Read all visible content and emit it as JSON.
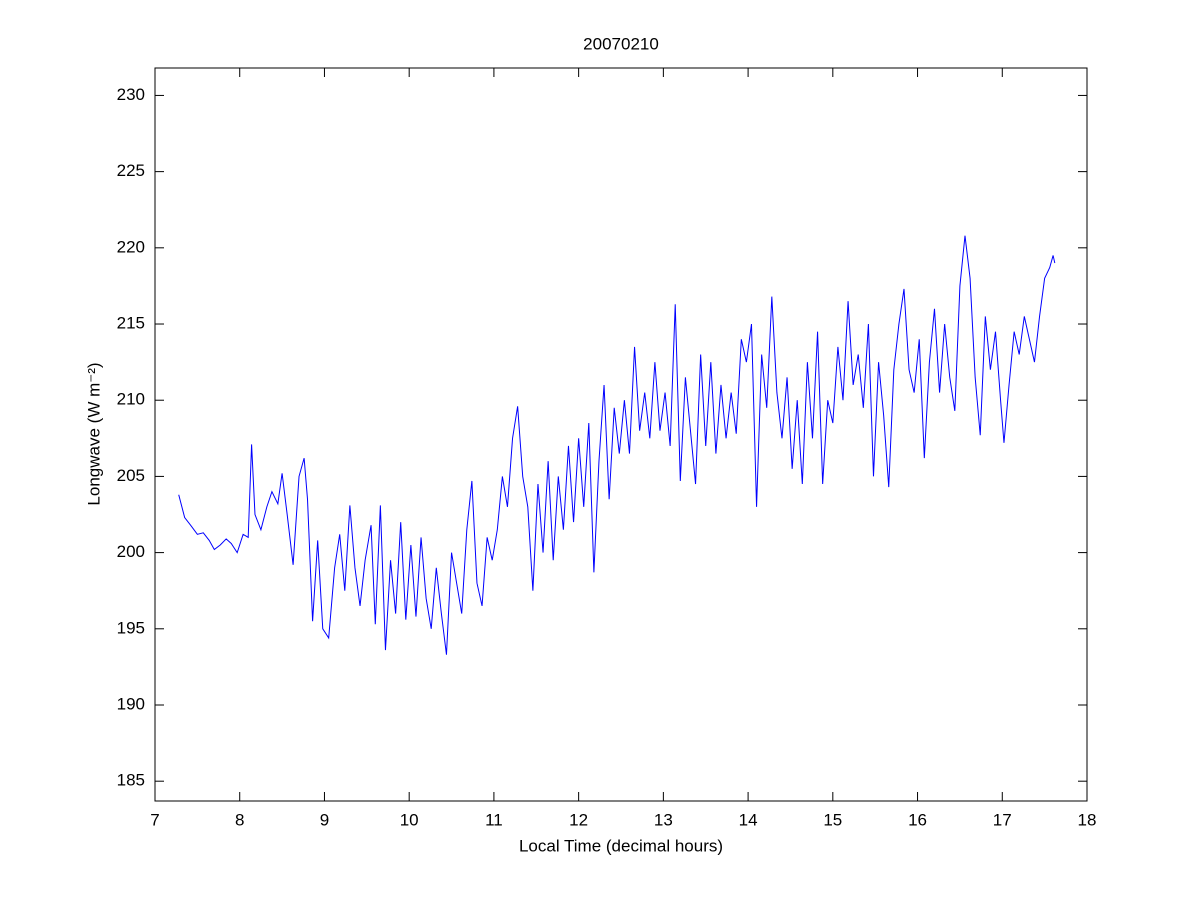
{
  "chart_data": {
    "type": "line",
    "title": "20070210",
    "xlabel": "Local Time (decimal hours)",
    "ylabel": "Longwave (W m⁻²)",
    "x": [
      7.28,
      7.35,
      7.42,
      7.5,
      7.57,
      7.64,
      7.7,
      7.77,
      7.84,
      7.9,
      7.97,
      8.04,
      8.1,
      8.14,
      8.18,
      8.25,
      8.32,
      8.38,
      8.45,
      8.5,
      8.56,
      8.63,
      8.7,
      8.76,
      8.8,
      8.86,
      8.92,
      8.98,
      9.05,
      9.12,
      9.18,
      9.24,
      9.3,
      9.36,
      9.42,
      9.48,
      9.55,
      9.6,
      9.66,
      9.72,
      9.78,
      9.84,
      9.9,
      9.96,
      10.02,
      10.08,
      10.14,
      10.2,
      10.26,
      10.32,
      10.38,
      10.44,
      10.5,
      10.56,
      10.62,
      10.68,
      10.74,
      10.8,
      10.86,
      10.92,
      10.98,
      11.04,
      11.1,
      11.16,
      11.22,
      11.28,
      11.34,
      11.4,
      11.46,
      11.52,
      11.58,
      11.64,
      11.7,
      11.76,
      11.82,
      11.88,
      11.94,
      12.0,
      12.06,
      12.12,
      12.18,
      12.24,
      12.3,
      12.36,
      12.42,
      12.48,
      12.54,
      12.6,
      12.66,
      12.72,
      12.78,
      12.84,
      12.9,
      12.96,
      13.02,
      13.08,
      13.14,
      13.2,
      13.26,
      13.32,
      13.38,
      13.44,
      13.5,
      13.56,
      13.62,
      13.68,
      13.74,
      13.8,
      13.86,
      13.92,
      13.98,
      14.04,
      14.1,
      14.16,
      14.22,
      14.28,
      14.34,
      14.4,
      14.46,
      14.52,
      14.58,
      14.64,
      14.7,
      14.76,
      14.82,
      14.88,
      14.94,
      15.0,
      15.06,
      15.12,
      15.18,
      15.24,
      15.3,
      15.36,
      15.42,
      15.48,
      15.54,
      15.6,
      15.66,
      15.72,
      15.78,
      15.84,
      15.9,
      15.96,
      16.02,
      16.08,
      16.14,
      16.2,
      16.26,
      16.32,
      16.38,
      16.44,
      16.5,
      16.56,
      16.62,
      16.68,
      16.74,
      16.8,
      16.86,
      16.92,
      16.98,
      17.02,
      17.08,
      17.14,
      17.2,
      17.26,
      17.32,
      17.38,
      17.44,
      17.5,
      17.56,
      17.6,
      17.62
    ],
    "series": [
      {
        "color": "#0000ff",
        "values": [
          203.8,
          202.3,
          201.8,
          201.2,
          201.3,
          200.8,
          200.2,
          200.5,
          200.9,
          200.6,
          200.0,
          201.2,
          201.0,
          207.1,
          202.5,
          201.5,
          203.0,
          204.0,
          203.2,
          205.2,
          202.5,
          199.2,
          205.0,
          206.2,
          203.5,
          195.5,
          200.8,
          195.0,
          194.4,
          199.0,
          201.2,
          197.5,
          203.1,
          199.0,
          196.5,
          199.5,
          201.8,
          195.3,
          203.1,
          193.6,
          199.5,
          196.0,
          202.0,
          195.6,
          200.5,
          195.8,
          201.0,
          197.0,
          195.0,
          199.0,
          196.0,
          193.3,
          200.0,
          198.0,
          196.0,
          201.5,
          204.7,
          198.0,
          196.5,
          201.0,
          199.5,
          201.5,
          205.0,
          203.0,
          207.5,
          209.6,
          205.0,
          203.0,
          197.5,
          204.5,
          200.0,
          206.0,
          199.5,
          205.0,
          201.5,
          207.0,
          202.0,
          207.5,
          203.0,
          208.5,
          198.7,
          206.0,
          211.0,
          203.5,
          209.5,
          206.5,
          210.0,
          206.5,
          213.5,
          208.0,
          210.5,
          207.5,
          212.5,
          208.0,
          210.5,
          207.0,
          216.3,
          204.7,
          211.5,
          208.0,
          204.5,
          213.0,
          207.0,
          212.5,
          206.5,
          211.0,
          207.5,
          210.5,
          207.8,
          214.0,
          212.5,
          215.0,
          203.0,
          213.0,
          209.5,
          216.8,
          210.5,
          207.5,
          211.5,
          205.5,
          210.0,
          204.5,
          212.5,
          207.5,
          214.5,
          204.5,
          210.0,
          208.5,
          213.5,
          210.0,
          216.5,
          211.0,
          213.0,
          209.5,
          215.0,
          205.0,
          212.5,
          209.0,
          204.3,
          212.0,
          215.0,
          217.3,
          212.0,
          210.5,
          214.0,
          206.2,
          212.5,
          216.0,
          210.5,
          215.0,
          211.5,
          209.3,
          217.5,
          220.8,
          218.0,
          211.5,
          207.7,
          215.5,
          212.0,
          214.5,
          210.0,
          207.2,
          211.0,
          214.5,
          213.0,
          215.5,
          214.0,
          212.5,
          215.5,
          218.0,
          218.7,
          219.5,
          219.0
        ]
      }
    ],
    "xlim": [
      7,
      18
    ],
    "xticks": [
      7,
      8,
      9,
      10,
      11,
      12,
      13,
      14,
      15,
      16,
      17,
      18
    ],
    "ylim": [
      183.7,
      231.8
    ],
    "yticks": [
      185,
      190,
      195,
      200,
      205,
      210,
      215,
      220,
      225,
      230
    ]
  }
}
